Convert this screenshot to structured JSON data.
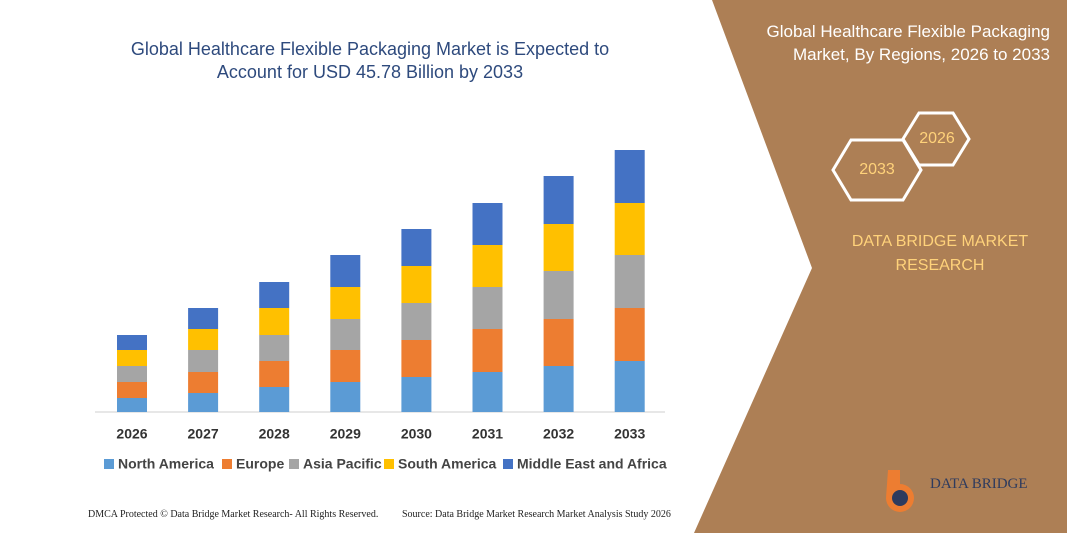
{
  "chart_data": {
    "type": "stacked-bar",
    "title": "Global Healthcare Flexible Packaging Market is Expected to Account for USD 45.78 Billion by 2033",
    "categories": [
      "2026",
      "2027",
      "2028",
      "2029",
      "2030",
      "2031",
      "2032",
      "2033"
    ],
    "series": [
      {
        "name": "North America",
        "color": "#5b9bd5",
        "values": [
          14,
          19,
          25,
          30,
          35,
          40,
          46,
          51
        ]
      },
      {
        "name": "Europe",
        "color": "#ed7d31",
        "values": [
          16,
          21,
          26,
          32,
          37,
          43,
          47,
          53
        ]
      },
      {
        "name": "Asia Pacific",
        "color": "#a5a5a5",
        "values": [
          16,
          22,
          26,
          31,
          37,
          42,
          48,
          53
        ]
      },
      {
        "name": "South America",
        "color": "#ffc000",
        "values": [
          16,
          21,
          27,
          32,
          37,
          42,
          47,
          52
        ]
      },
      {
        "name": "Middle East and Africa",
        "color": "#4472c4",
        "values": [
          15,
          21,
          26,
          32,
          37,
          42,
          48,
          53
        ]
      }
    ]
  },
  "panel": {
    "title": "Global Healthcare Flexible Packaging Market, By Regions, 2026 to 2033",
    "hex_labels": [
      "2026",
      "2033"
    ],
    "brand": "DATA BRIDGE MARKET RESEARCH",
    "logo": "DATA BRIDGE"
  },
  "footer": {
    "left": "DMCA Protected © Data Bridge Market Research- All Rights Reserved.",
    "right": "Source: Data Bridge Market Research Market Analysis Study 2026"
  }
}
